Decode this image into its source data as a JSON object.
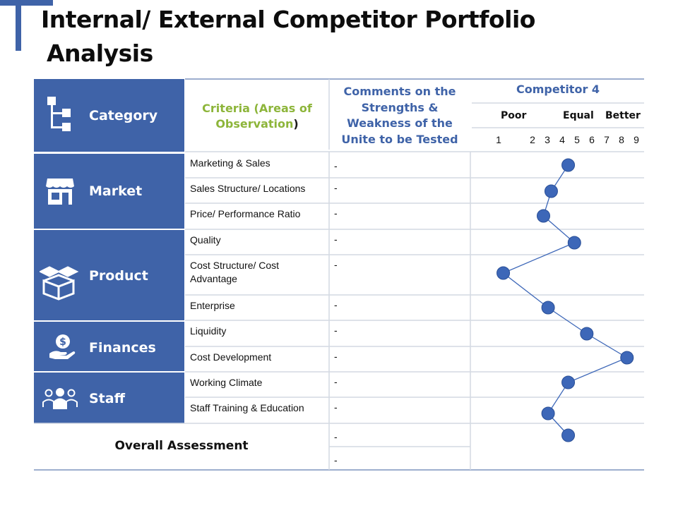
{
  "title": {
    "line1": "Internal/ External Competitor Portfolio",
    "line2": "Analysis"
  },
  "headers": {
    "category": "Category",
    "criteria": "Criteria (Areas of Observation",
    "criteria_paren": ")",
    "comments": "Comments on the Strengths & Weakness of the Unite to be Tested",
    "competitor": "Competitor 4"
  },
  "scale": {
    "poor": "Poor",
    "equal": "Equal",
    "better": "Better",
    "numbers": [
      "1",
      "2",
      "3",
      "4",
      "5",
      "6",
      "7",
      "8",
      "9"
    ]
  },
  "categories": [
    {
      "label": "Market",
      "icon": "storefront-icon"
    },
    {
      "label": "Product",
      "icon": "boxes-icon"
    },
    {
      "label": "Finances",
      "icon": "money-hand-icon"
    },
    {
      "label": "Staff",
      "icon": "team-icon"
    }
  ],
  "rows": [
    {
      "criteria": "Marketing & Sales",
      "comment": "-"
    },
    {
      "criteria": "Sales Structure/ Locations",
      "comment": "-"
    },
    {
      "criteria": "Price/ Performance Ratio",
      "comment": "-"
    },
    {
      "criteria": "Quality",
      "comment": "-"
    },
    {
      "criteria": "Cost Structure/ Cost Advantage",
      "comment": "-"
    },
    {
      "criteria": "Enterprise",
      "comment": "-"
    },
    {
      "criteria": "Liquidity",
      "comment": "-"
    },
    {
      "criteria": "Cost Development",
      "comment": "-"
    },
    {
      "criteria": "Working Climate",
      "comment": "-"
    },
    {
      "criteria": "Staff Training & Education",
      "comment": "-"
    }
  ],
  "overall": {
    "label": "Overall Assessment",
    "comments": [
      "-",
      "-"
    ]
  },
  "chart_data": {
    "type": "line",
    "series": [
      {
        "name": "Competitor 4",
        "values": [
          5.5,
          4.4,
          3.9,
          5.9,
          1.3,
          4.2,
          6.7,
          9.3,
          5.5,
          4.2,
          5.5
        ]
      }
    ],
    "xlim": [
      1,
      9
    ],
    "colors": {
      "point": "#3d67b8",
      "line": "#3d67b8"
    }
  },
  "colors": {
    "accent": "#3f63a8",
    "criteria_green": "#8db53a",
    "grid": "#d3d9e2"
  }
}
